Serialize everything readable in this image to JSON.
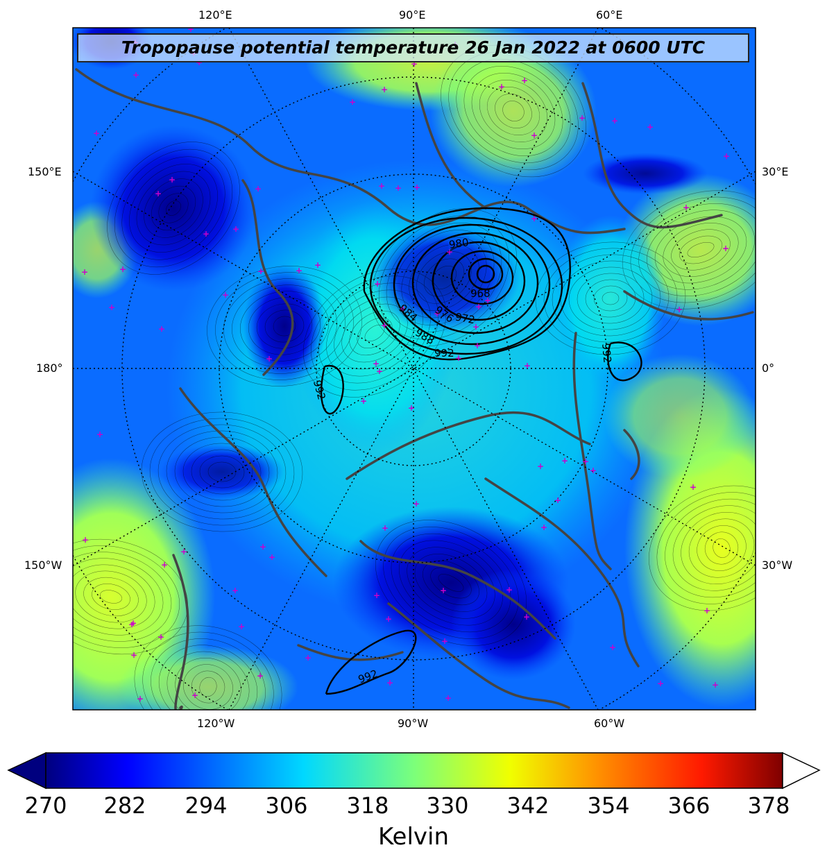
{
  "title": "Tropopause potential temperature 26 Jan 2022 at 0600 UTC",
  "top_lon_labels": [
    "120°E",
    "90°E",
    "60°E"
  ],
  "bottom_lon_labels": [
    "120°W",
    "90°W",
    "60°W"
  ],
  "left_lon_labels": [
    "150°E",
    "180°",
    "150°W"
  ],
  "right_lon_labels": [
    "30°E",
    "0°",
    "30°W"
  ],
  "isobar_labels": [
    "980",
    "968",
    "984",
    "976",
    "972",
    "988",
    "992",
    "992",
    "992",
    "992"
  ],
  "colorbar": {
    "unit": "Kelvin",
    "ticks": [
      "270",
      "282",
      "294",
      "306",
      "318",
      "330",
      "342",
      "354",
      "366",
      "378"
    ],
    "colors": [
      "#00007f",
      "#0000ff",
      "#0080ff",
      "#00e5ff",
      "#4cffb2",
      "#b2ff4c",
      "#ffe600",
      "#ff8000",
      "#ff1a00",
      "#7f0000"
    ]
  },
  "colors": {
    "contour": "#000000",
    "coastline": "#444444",
    "station_marker": "#cc00cc"
  }
}
